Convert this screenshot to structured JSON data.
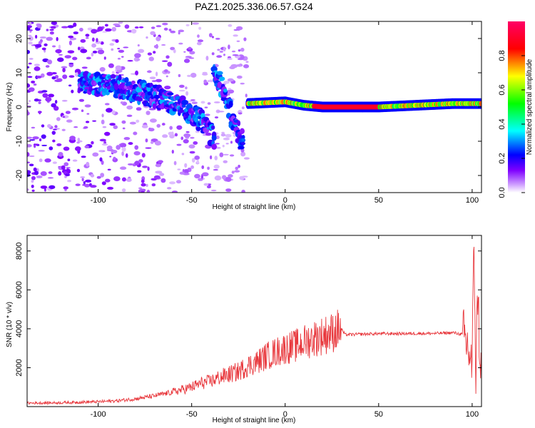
{
  "title": "PAZ1.2025.336.06.57.G24",
  "chart_data": [
    {
      "type": "heatmap",
      "name": "spectrogram",
      "xlabel": "Height of straight line (km)",
      "ylabel": "Frequency (Hz)",
      "xlim": [
        -138,
        105
      ],
      "ylim": [
        -25,
        25
      ],
      "xticks": [
        -100,
        -50,
        0,
        50,
        100
      ],
      "yticks": [
        -20,
        -10,
        0,
        10,
        20
      ],
      "colorbar": {
        "label": "Normalized spectral amplitude",
        "range": [
          0,
          1
        ],
        "ticks": [
          0.0,
          0.2,
          0.4,
          0.6,
          0.8
        ],
        "tick_labels": [
          "0.0",
          "0.2",
          "0.4",
          "0.6",
          "0.8"
        ],
        "colors": [
          "#ffffff",
          "#cc99ff",
          "#7f00ff",
          "#0000ff",
          "#00ffff",
          "#00ff00",
          "#ffff00",
          "#ff0000",
          "#ff0066"
        ]
      },
      "features": [
        {
          "desc": "scattered noise, low amplitude",
          "x_range": [
            -138,
            -20
          ],
          "y_range": [
            -25,
            25
          ],
          "amplitude": 0.1
        },
        {
          "desc": "descending arc",
          "x": [
            -110,
            -90,
            -75,
            -63,
            -55,
            -45,
            -38
          ],
          "y": [
            7,
            6,
            4,
            2,
            0,
            -4,
            -9
          ],
          "amplitude": 0.3
        },
        {
          "desc": "second arc",
          "x": [
            -38,
            -32,
            -27,
            -22
          ],
          "y": [
            11,
            3,
            -5,
            -11
          ],
          "amplitude": 0.3
        },
        {
          "desc": "main line near 0 Hz",
          "x": [
            -20,
            0,
            10,
            20,
            40,
            50,
            70,
            90,
            105
          ],
          "y": [
            1,
            1.5,
            0.5,
            0,
            0,
            0,
            0.5,
            1,
            1
          ],
          "amplitude": 0.8
        }
      ]
    },
    {
      "type": "line",
      "name": "snr",
      "xlabel": "Height of straight line (km)",
      "ylabel": "SNR (10 * v/v)",
      "xlim": [
        -138,
        105
      ],
      "ylim": [
        0,
        8800
      ],
      "xticks": [
        -100,
        -50,
        0,
        50,
        100
      ],
      "yticks": [
        2000,
        4000,
        6000,
        8000
      ],
      "color": "#e8383d",
      "series": [
        {
          "name": "SNR",
          "x": [
            -138,
            -120,
            -100,
            -90,
            -80,
            -70,
            -60,
            -50,
            -45,
            -40,
            -35,
            -30,
            -25,
            -20,
            -15,
            -10,
            -5,
            0,
            5,
            10,
            15,
            20,
            25,
            28,
            30,
            32,
            35,
            40,
            50,
            60,
            70,
            80,
            90,
            95,
            98,
            100,
            101,
            102,
            103,
            104,
            105
          ],
          "y": [
            180,
            200,
            250,
            300,
            400,
            550,
            750,
            1000,
            1200,
            1300,
            1500,
            1650,
            1800,
            2100,
            2300,
            2600,
            2800,
            3000,
            3100,
            3300,
            3500,
            3650,
            3800,
            3950,
            4000,
            3700,
            3700,
            3720,
            3750,
            3750,
            3760,
            3760,
            3800,
            3700,
            3000,
            2000,
            8500,
            1500,
            6000,
            3000,
            1500
          ]
        }
      ]
    }
  ]
}
